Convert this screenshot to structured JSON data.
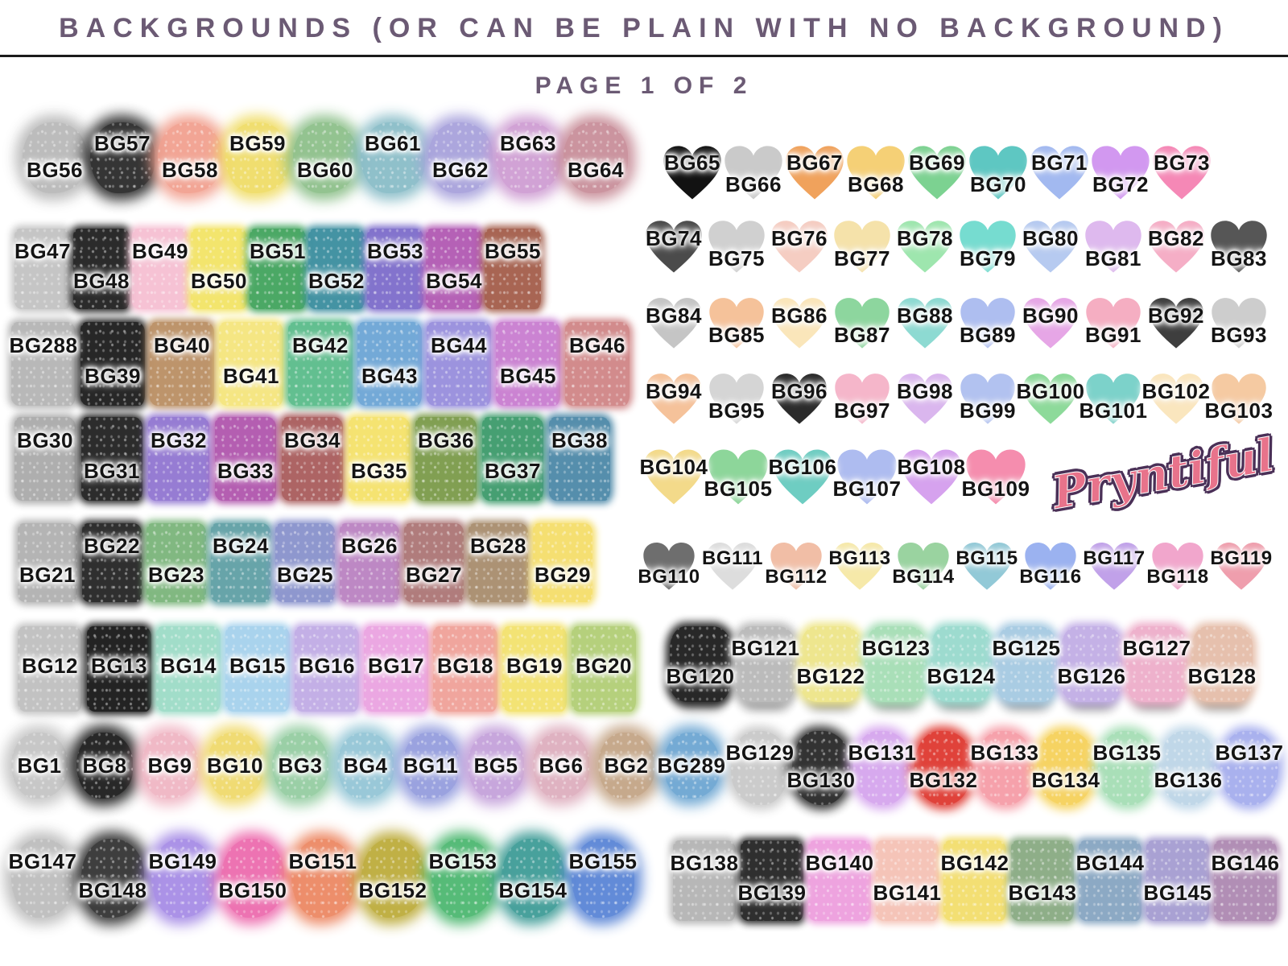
{
  "header": {
    "title": "BACKGROUNDS (OR CAN BE PLAIN WITH NO BACKGROUND)",
    "page_label": "PAGE 1 OF 2",
    "title_color": "#6b5a74"
  },
  "logo": {
    "text": "Pryntiful",
    "fill_color": "#e8738b",
    "outline_color": "#4a3057"
  },
  "sections": {
    "left": [
      {
        "variant": "l1",
        "shape": "blob",
        "first": "lo",
        "items": [
          {
            "id": "BG56",
            "color": "#b9b9b9"
          },
          {
            "id": "BG57",
            "color": "#2b2b2b"
          },
          {
            "id": "BG58",
            "color": "#f2a190"
          },
          {
            "id": "BG59",
            "color": "#f0dd68"
          },
          {
            "id": "BG60",
            "color": "#8ec08b"
          },
          {
            "id": "BG61",
            "color": "#8abdc8"
          },
          {
            "id": "BG62",
            "color": "#a8a2dc"
          },
          {
            "id": "BG63",
            "color": "#cf9ed3"
          },
          {
            "id": "BG64",
            "color": "#c98f9a"
          }
        ]
      },
      {
        "variant": "l2",
        "shape": "wash",
        "first": "hi",
        "items": [
          {
            "id": "BG47",
            "color": "#c3c3c3"
          },
          {
            "id": "BG48",
            "color": "#232323"
          },
          {
            "id": "BG49",
            "color": "#f6c0d3"
          },
          {
            "id": "BG50",
            "color": "#f3e468"
          },
          {
            "id": "BG51",
            "color": "#44a55f"
          },
          {
            "id": "BG52",
            "color": "#3d8fa0"
          },
          {
            "id": "BG53",
            "color": "#7e6ecb"
          },
          {
            "id": "BG54",
            "color": "#b25bb4"
          },
          {
            "id": "BG55",
            "color": "#a55f4d"
          }
        ]
      },
      {
        "variant": "l3",
        "shape": "wash",
        "first": "hi",
        "items": [
          {
            "id": "BG288",
            "color": "#b6b6b6"
          },
          {
            "id": "BG39",
            "color": "#1f1f1f"
          },
          {
            "id": "BG40",
            "color": "#bb9065"
          },
          {
            "id": "BG41",
            "color": "#f5e67e"
          },
          {
            "id": "BG42",
            "color": "#5cbd8c"
          },
          {
            "id": "BG43",
            "color": "#6ea6d6"
          },
          {
            "id": "BG44",
            "color": "#988fdd"
          },
          {
            "id": "BG45",
            "color": "#c97ed1"
          },
          {
            "id": "BG46",
            "color": "#d18788"
          }
        ]
      },
      {
        "variant": "l4",
        "shape": "wash",
        "first": "hi",
        "items": [
          {
            "id": "BG30",
            "color": "#ababab"
          },
          {
            "id": "BG31",
            "color": "#242424"
          },
          {
            "id": "BG32",
            "color": "#9277d2"
          },
          {
            "id": "BG33",
            "color": "#b158ae"
          },
          {
            "id": "BG34",
            "color": "#aa5e5e"
          },
          {
            "id": "BG35",
            "color": "#f5e26c"
          },
          {
            "id": "BG36",
            "color": "#7c9c4b"
          },
          {
            "id": "BG37",
            "color": "#3f9c6d"
          },
          {
            "id": "BG38",
            "color": "#4f8aa9"
          }
        ]
      },
      {
        "variant": "l5",
        "shape": "wash",
        "first": "lo",
        "items": [
          {
            "id": "BG21",
            "color": "#b1b1b1"
          },
          {
            "id": "BG22",
            "color": "#272727"
          },
          {
            "id": "BG23",
            "color": "#7cb67c"
          },
          {
            "id": "BG24",
            "color": "#61a1a6"
          },
          {
            "id": "BG25",
            "color": "#8a93cd"
          },
          {
            "id": "BG26",
            "color": "#bb84c2"
          },
          {
            "id": "BG27",
            "color": "#ad7777"
          },
          {
            "id": "BG28",
            "color": "#a98e6f"
          },
          {
            "id": "BG29",
            "color": "#f5de6c"
          }
        ]
      },
      {
        "variant": "l6",
        "shape": "wash",
        "first": "mid",
        "items": [
          {
            "id": "BG12",
            "color": "#c0c0c0"
          },
          {
            "id": "BG13",
            "color": "#1b1b1b"
          },
          {
            "id": "BG14",
            "color": "#9edcc7"
          },
          {
            "id": "BG15",
            "color": "#a6d2ed"
          },
          {
            "id": "BG16",
            "color": "#c1ace6"
          },
          {
            "id": "BG17",
            "color": "#eba4e1"
          },
          {
            "id": "BG18",
            "color": "#f0a29a"
          },
          {
            "id": "BG19",
            "color": "#f3e26f"
          },
          {
            "id": "BG20",
            "color": "#b3cf77"
          }
        ]
      },
      {
        "variant": "l7",
        "shape": "blob",
        "first": "mid",
        "items": [
          {
            "id": "BG1",
            "color": "#c5c5c5"
          },
          {
            "id": "BG8",
            "color": "#1d1d1d"
          },
          {
            "id": "BG9",
            "color": "#f0b6c4"
          },
          {
            "id": "BG10",
            "color": "#f0da6c"
          },
          {
            "id": "BG3",
            "color": "#95cda2"
          },
          {
            "id": "BG4",
            "color": "#94c6d6"
          },
          {
            "id": "BG11",
            "color": "#959ede"
          },
          {
            "id": "BG5",
            "color": "#c5a2db"
          },
          {
            "id": "BG6",
            "color": "#deaebe"
          },
          {
            "id": "BG2",
            "color": "#c4a586"
          },
          {
            "id": "BG289",
            "color": "#6da6d2"
          }
        ]
      },
      {
        "variant": "l8",
        "shape": "blob",
        "first": "hi",
        "items": [
          {
            "id": "BG147",
            "color": "#bdbdbd"
          },
          {
            "id": "BG148",
            "color": "#343434"
          },
          {
            "id": "BG149",
            "color": "#a78de6"
          },
          {
            "id": "BG150",
            "color": "#ed6cae"
          },
          {
            "id": "BG151",
            "color": "#ed8864"
          },
          {
            "id": "BG152",
            "color": "#bdac3c"
          },
          {
            "id": "BG153",
            "color": "#4eb871"
          },
          {
            "id": "BG154",
            "color": "#3f9c97"
          },
          {
            "id": "BG155",
            "color": "#5a85d6"
          }
        ]
      }
    ],
    "right": [
      {
        "variant": "r1",
        "shape": "heart",
        "first": "hi",
        "items": [
          {
            "id": "BG65",
            "color": "#121212"
          },
          {
            "id": "BG66",
            "color": "#cacaca"
          },
          {
            "id": "BG67",
            "color": "#f0a25c"
          },
          {
            "id": "BG68",
            "color": "#f5d076"
          },
          {
            "id": "BG69",
            "color": "#7cd291"
          },
          {
            "id": "BG70",
            "color": "#5ec7c2"
          },
          {
            "id": "BG71",
            "color": "#a2b9f0"
          },
          {
            "id": "BG72",
            "color": "#d298f0"
          },
          {
            "id": "BG73",
            "color": "#f588b6"
          }
        ]
      },
      {
        "variant": "r2",
        "shape": "heart",
        "first": "hi",
        "items": [
          {
            "id": "BG74",
            "color": "#4b4b4b"
          },
          {
            "id": "BG75",
            "color": "#d0d0d0"
          },
          {
            "id": "BG76",
            "color": "#f5cdc2"
          },
          {
            "id": "BG77",
            "color": "#f5e2aa"
          },
          {
            "id": "BG78",
            "color": "#9ee6ae"
          },
          {
            "id": "BG79",
            "color": "#76dcd0"
          },
          {
            "id": "BG80",
            "color": "#b6caf0"
          },
          {
            "id": "BG81",
            "color": "#deb9ee"
          },
          {
            "id": "BG82",
            "color": "#f5aec6"
          },
          {
            "id": "BG83",
            "color": "#565656"
          }
        ]
      },
      {
        "variant": "r3",
        "shape": "heart",
        "first": "hi",
        "items": [
          {
            "id": "BG84",
            "color": "#c5c5c5"
          },
          {
            "id": "BG85",
            "color": "#f5c29a"
          },
          {
            "id": "BG86",
            "color": "#fae6ba"
          },
          {
            "id": "BG87",
            "color": "#8dd69e"
          },
          {
            "id": "BG88",
            "color": "#8ddad2"
          },
          {
            "id": "BG89",
            "color": "#aebef0"
          },
          {
            "id": "BG90",
            "color": "#e6a6e6"
          },
          {
            "id": "BG91",
            "color": "#f5aec2"
          },
          {
            "id": "BG92",
            "color": "#3e3e3e"
          },
          {
            "id": "BG93",
            "color": "#cdcdcd"
          }
        ]
      },
      {
        "variant": "r4",
        "shape": "heart",
        "first": "hi",
        "items": [
          {
            "id": "BG94",
            "color": "#f5c29a"
          },
          {
            "id": "BG95",
            "color": "#d5d5d5"
          },
          {
            "id": "BG96",
            "color": "#2b2b2b"
          },
          {
            "id": "BG97",
            "color": "#f5b6ca"
          },
          {
            "id": "BG98",
            "color": "#dab6ee"
          },
          {
            "id": "BG99",
            "color": "#b2c2f0"
          },
          {
            "id": "BG100",
            "color": "#8dda9a"
          },
          {
            "id": "BG101",
            "color": "#7cd2ca"
          },
          {
            "id": "BG102",
            "color": "#fae6be"
          },
          {
            "id": "BG103",
            "color": "#f5caa2"
          }
        ]
      },
      {
        "variant": "r5",
        "shape": "heart",
        "first": "hi",
        "items": [
          {
            "id": "BG104",
            "color": "#f3da8a"
          },
          {
            "id": "BG105",
            "color": "#8dd69a"
          },
          {
            "id": "BG106",
            "color": "#6ecdc2"
          },
          {
            "id": "BG107",
            "color": "#aebcf0"
          },
          {
            "id": "BG108",
            "color": "#d6a2ee"
          },
          {
            "id": "BG109",
            "color": "#f58dae"
          }
        ]
      },
      {
        "variant": "r6",
        "shape": "heart-sketch",
        "first": "lo",
        "items": [
          {
            "id": "BG110",
            "color": "#5b5b5b"
          },
          {
            "id": "BG111",
            "color": "#d9d9d9"
          },
          {
            "id": "BG112",
            "color": "#f0b69a"
          },
          {
            "id": "BG113",
            "color": "#f5e69e"
          },
          {
            "id": "BG114",
            "color": "#8dcd94"
          },
          {
            "id": "BG115",
            "color": "#84c2d2"
          },
          {
            "id": "BG116",
            "color": "#8ea8ee"
          },
          {
            "id": "BG117",
            "color": "#b995e6"
          },
          {
            "id": "BG118",
            "color": "#f09ac6"
          },
          {
            "id": "BG119",
            "color": "#ed91a2"
          }
        ]
      },
      {
        "variant": "r7",
        "shape": "splat",
        "first": "lo",
        "items": [
          {
            "id": "BG120",
            "color": "#202020"
          },
          {
            "id": "BG121",
            "color": "#b9b9b9"
          },
          {
            "id": "BG122",
            "color": "#eee68a"
          },
          {
            "id": "BG123",
            "color": "#a6deb6"
          },
          {
            "id": "BG124",
            "color": "#9adace"
          },
          {
            "id": "BG125",
            "color": "#a6cae2"
          },
          {
            "id": "BG126",
            "color": "#c2aee6"
          },
          {
            "id": "BG127",
            "color": "#eeaeca"
          },
          {
            "id": "BG128",
            "color": "#e6beaa"
          }
        ]
      },
      {
        "variant": "r8",
        "shape": "scallop",
        "first": "hi",
        "items": [
          {
            "id": "BG129",
            "color": "#c9c9c9"
          },
          {
            "id": "BG130",
            "color": "#2b2b2b"
          },
          {
            "id": "BG131",
            "color": "#d6a6ee"
          },
          {
            "id": "BG132",
            "color": "#df3b33"
          },
          {
            "id": "BG133",
            "color": "#f69ea8"
          },
          {
            "id": "BG134",
            "color": "#f6d25c"
          },
          {
            "id": "BG135",
            "color": "#a6deb6"
          },
          {
            "id": "BG136",
            "color": "#bed6e8"
          },
          {
            "id": "BG137",
            "color": "#a6aeee"
          }
        ]
      },
      {
        "variant": "r9",
        "shape": "wash",
        "first": "hi",
        "items": [
          {
            "id": "BG138",
            "color": "#b5b5b5"
          },
          {
            "id": "BG139",
            "color": "#272727"
          },
          {
            "id": "BG140",
            "color": "#eea0de"
          },
          {
            "id": "BG141",
            "color": "#f5c2b6"
          },
          {
            "id": "BG142",
            "color": "#f3de6e"
          },
          {
            "id": "BG143",
            "color": "#8aab84"
          },
          {
            "id": "BG144",
            "color": "#88a6c2"
          },
          {
            "id": "BG145",
            "color": "#a69ed2"
          },
          {
            "id": "BG146",
            "color": "#ae8ab2"
          }
        ]
      }
    ]
  }
}
